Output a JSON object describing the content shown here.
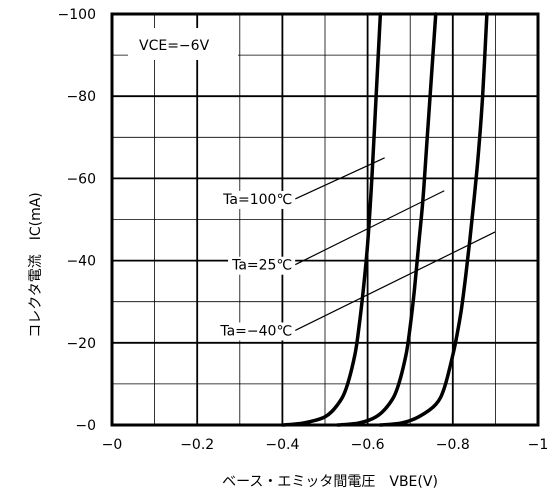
{
  "chart_data": {
    "type": "line",
    "xlabel": "ベース・エミッタ間電圧　VBE(V)",
    "ylabel": "コレクタ電流　IC(mA)",
    "xlim": [
      0,
      -1
    ],
    "ylim": [
      0,
      -100
    ],
    "x_ticks": [
      0,
      -0.2,
      -0.4,
      -0.6,
      -0.8,
      -1
    ],
    "x_tick_labels": [
      "−0",
      "−0.2",
      "−0.4",
      "−0.6",
      "−0.8",
      "−1"
    ],
    "y_ticks": [
      0,
      -20,
      -40,
      -60,
      -80,
      -100
    ],
    "y_tick_labels": [
      "−0",
      "−20",
      "−40",
      "−60",
      "−80",
      "−100"
    ],
    "x_minor_step": -0.1,
    "y_minor_step": -10,
    "grid": true,
    "condition_label": "VCE=−6V",
    "series": [
      {
        "name": "Ta=100℃",
        "x": [
          -0.4,
          -0.45,
          -0.5,
          -0.53,
          -0.55,
          -0.57,
          -0.58,
          -0.59,
          -0.6,
          -0.61,
          -0.62,
          -0.63
        ],
        "y": [
          0,
          -0.5,
          -2,
          -5,
          -9,
          -17,
          -24,
          -33,
          -44,
          -60,
          -80,
          -100
        ]
      },
      {
        "name": "Ta=25℃",
        "x": [
          -0.53,
          -0.58,
          -0.62,
          -0.65,
          -0.67,
          -0.69,
          -0.7,
          -0.71,
          -0.72,
          -0.73,
          -0.74,
          -0.76
        ],
        "y": [
          0,
          -0.5,
          -2,
          -5,
          -9,
          -17,
          -24,
          -33,
          -44,
          -55,
          -70,
          -100
        ]
      },
      {
        "name": "Ta=−40℃",
        "x": [
          -0.63,
          -0.68,
          -0.72,
          -0.76,
          -0.78,
          -0.8,
          -0.81,
          -0.82,
          -0.83,
          -0.84,
          -0.85,
          -0.86,
          -0.87,
          -0.88
        ],
        "y": [
          0,
          -0.5,
          -2,
          -5,
          -9,
          -17,
          -22,
          -28,
          -36,
          -45,
          -55,
          -66,
          -80,
          -100
        ]
      }
    ],
    "annotations": [
      {
        "label": "Ta=100℃",
        "x1": -0.43,
        "y1": -55,
        "x2": -0.64,
        "y2": -65
      },
      {
        "label": "Ta=25℃",
        "x1": -0.43,
        "y1": -39,
        "x2": -0.78,
        "y2": -57
      },
      {
        "label": "Ta=−40℃",
        "x1": -0.43,
        "y1": -23,
        "x2": -0.9,
        "y2": -47
      }
    ]
  }
}
